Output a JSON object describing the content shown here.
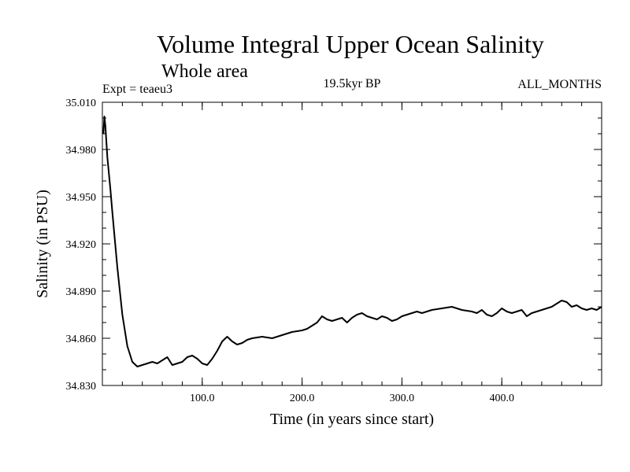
{
  "chart_data": {
    "type": "line",
    "title": "Volume Integral Upper Ocean Salinity",
    "subtitle": "Whole area",
    "annotations": {
      "experiment": "Expt = teaeu3",
      "period": "19.5kyr BP",
      "months": "ALL_MONTHS"
    },
    "xlabel": "Time (in years since start)",
    "ylabel": "Salinity (in PSU)",
    "xlim": [
      0,
      500
    ],
    "ylim": [
      34.83,
      35.01
    ],
    "x_ticks": [
      {
        "value": 100,
        "label": "100.0"
      },
      {
        "value": 200,
        "label": "200.0"
      },
      {
        "value": 300,
        "label": "300.0"
      },
      {
        "value": 400,
        "label": "400.0"
      }
    ],
    "y_ticks": [
      {
        "value": 34.83,
        "label": "34.830"
      },
      {
        "value": 34.86,
        "label": "34.860"
      },
      {
        "value": 34.89,
        "label": "34.890"
      },
      {
        "value": 34.92,
        "label": "34.920"
      },
      {
        "value": 34.95,
        "label": "34.950"
      },
      {
        "value": 34.98,
        "label": "34.980"
      },
      {
        "value": 35.01,
        "label": "35.010"
      }
    ],
    "grid": false,
    "series": [
      {
        "name": "salinity",
        "x": [
          1,
          2,
          3,
          5,
          8,
          10,
          15,
          20,
          25,
          30,
          35,
          40,
          45,
          50,
          55,
          60,
          65,
          70,
          75,
          80,
          85,
          90,
          95,
          100,
          105,
          110,
          115,
          120,
          125,
          130,
          135,
          140,
          145,
          150,
          160,
          170,
          180,
          190,
          200,
          205,
          210,
          215,
          220,
          225,
          230,
          235,
          240,
          245,
          250,
          255,
          260,
          265,
          270,
          275,
          280,
          285,
          290,
          295,
          300,
          305,
          310,
          315,
          320,
          330,
          340,
          350,
          355,
          360,
          370,
          375,
          380,
          385,
          390,
          395,
          400,
          405,
          410,
          415,
          420,
          425,
          430,
          435,
          440,
          445,
          450,
          455,
          460,
          465,
          470,
          475,
          480,
          485,
          490,
          495,
          500
        ],
        "values": [
          34.99,
          35.001,
          34.995,
          34.975,
          34.955,
          34.94,
          34.905,
          34.875,
          34.855,
          34.845,
          34.842,
          34.843,
          34.844,
          34.845,
          34.844,
          34.846,
          34.848,
          34.843,
          34.844,
          34.845,
          34.848,
          34.849,
          34.847,
          34.844,
          34.843,
          34.847,
          34.852,
          34.858,
          34.861,
          34.858,
          34.856,
          34.857,
          34.859,
          34.86,
          34.861,
          34.86,
          34.862,
          34.864,
          34.865,
          34.866,
          34.868,
          34.87,
          34.874,
          34.872,
          34.871,
          34.872,
          34.873,
          34.87,
          34.873,
          34.875,
          34.876,
          34.874,
          34.873,
          34.872,
          34.874,
          34.873,
          34.871,
          34.872,
          34.874,
          34.875,
          34.876,
          34.877,
          34.876,
          34.878,
          34.879,
          34.88,
          34.879,
          34.878,
          34.877,
          34.876,
          34.878,
          34.875,
          34.874,
          34.876,
          34.879,
          34.877,
          34.876,
          34.877,
          34.878,
          34.874,
          34.876,
          34.877,
          34.878,
          34.879,
          34.88,
          34.882,
          34.884,
          34.883,
          34.88,
          34.881,
          34.879,
          34.878,
          34.879,
          34.878,
          34.88
        ]
      }
    ]
  }
}
